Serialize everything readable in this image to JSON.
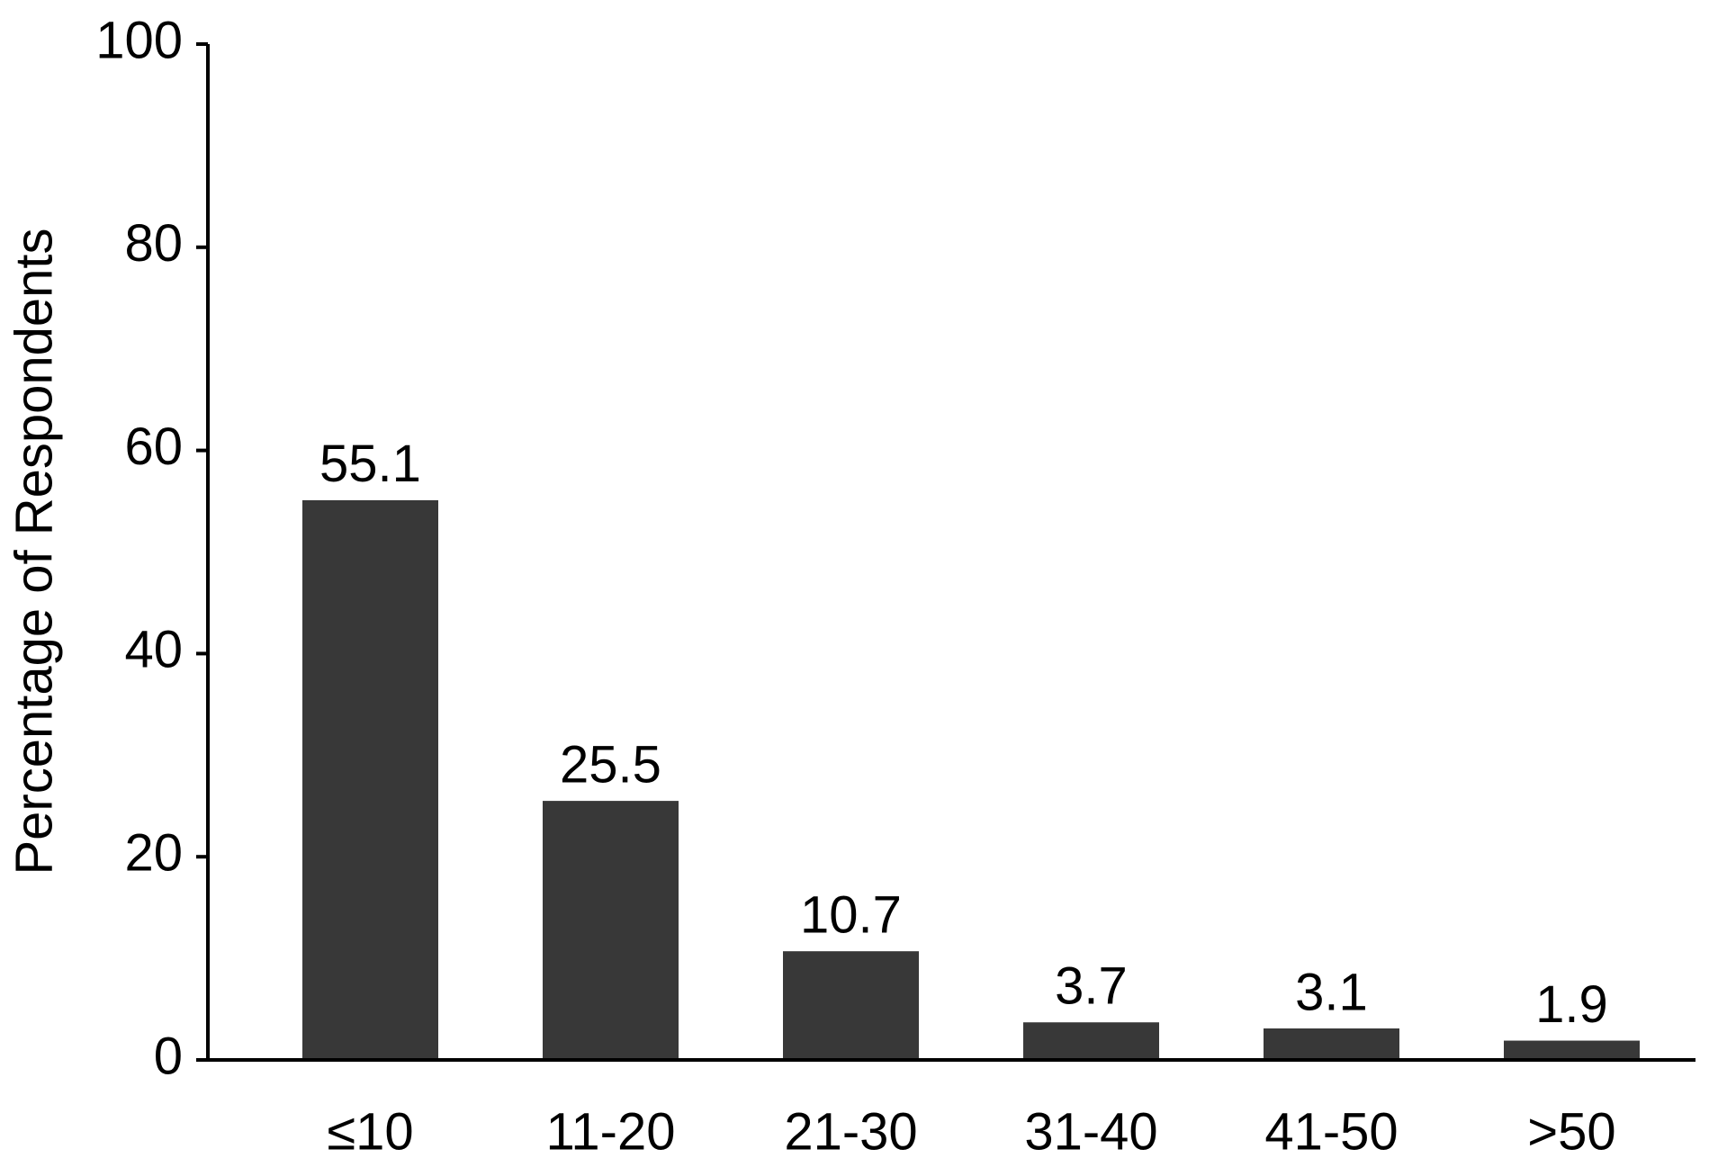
{
  "chart_data": {
    "type": "bar",
    "y_label": "Percentage of Respondents",
    "categories": [
      "≤10",
      "11-20",
      "21-30",
      "31-40",
      "41-50",
      ">50"
    ],
    "values": [
      55.1,
      25.5,
      10.7,
      3.7,
      3.1,
      1.9
    ],
    "color": "#383838",
    "ylim": [
      0,
      100
    ],
    "yticks": [
      0,
      20,
      40,
      60,
      80,
      100
    ],
    "grid": false
  }
}
